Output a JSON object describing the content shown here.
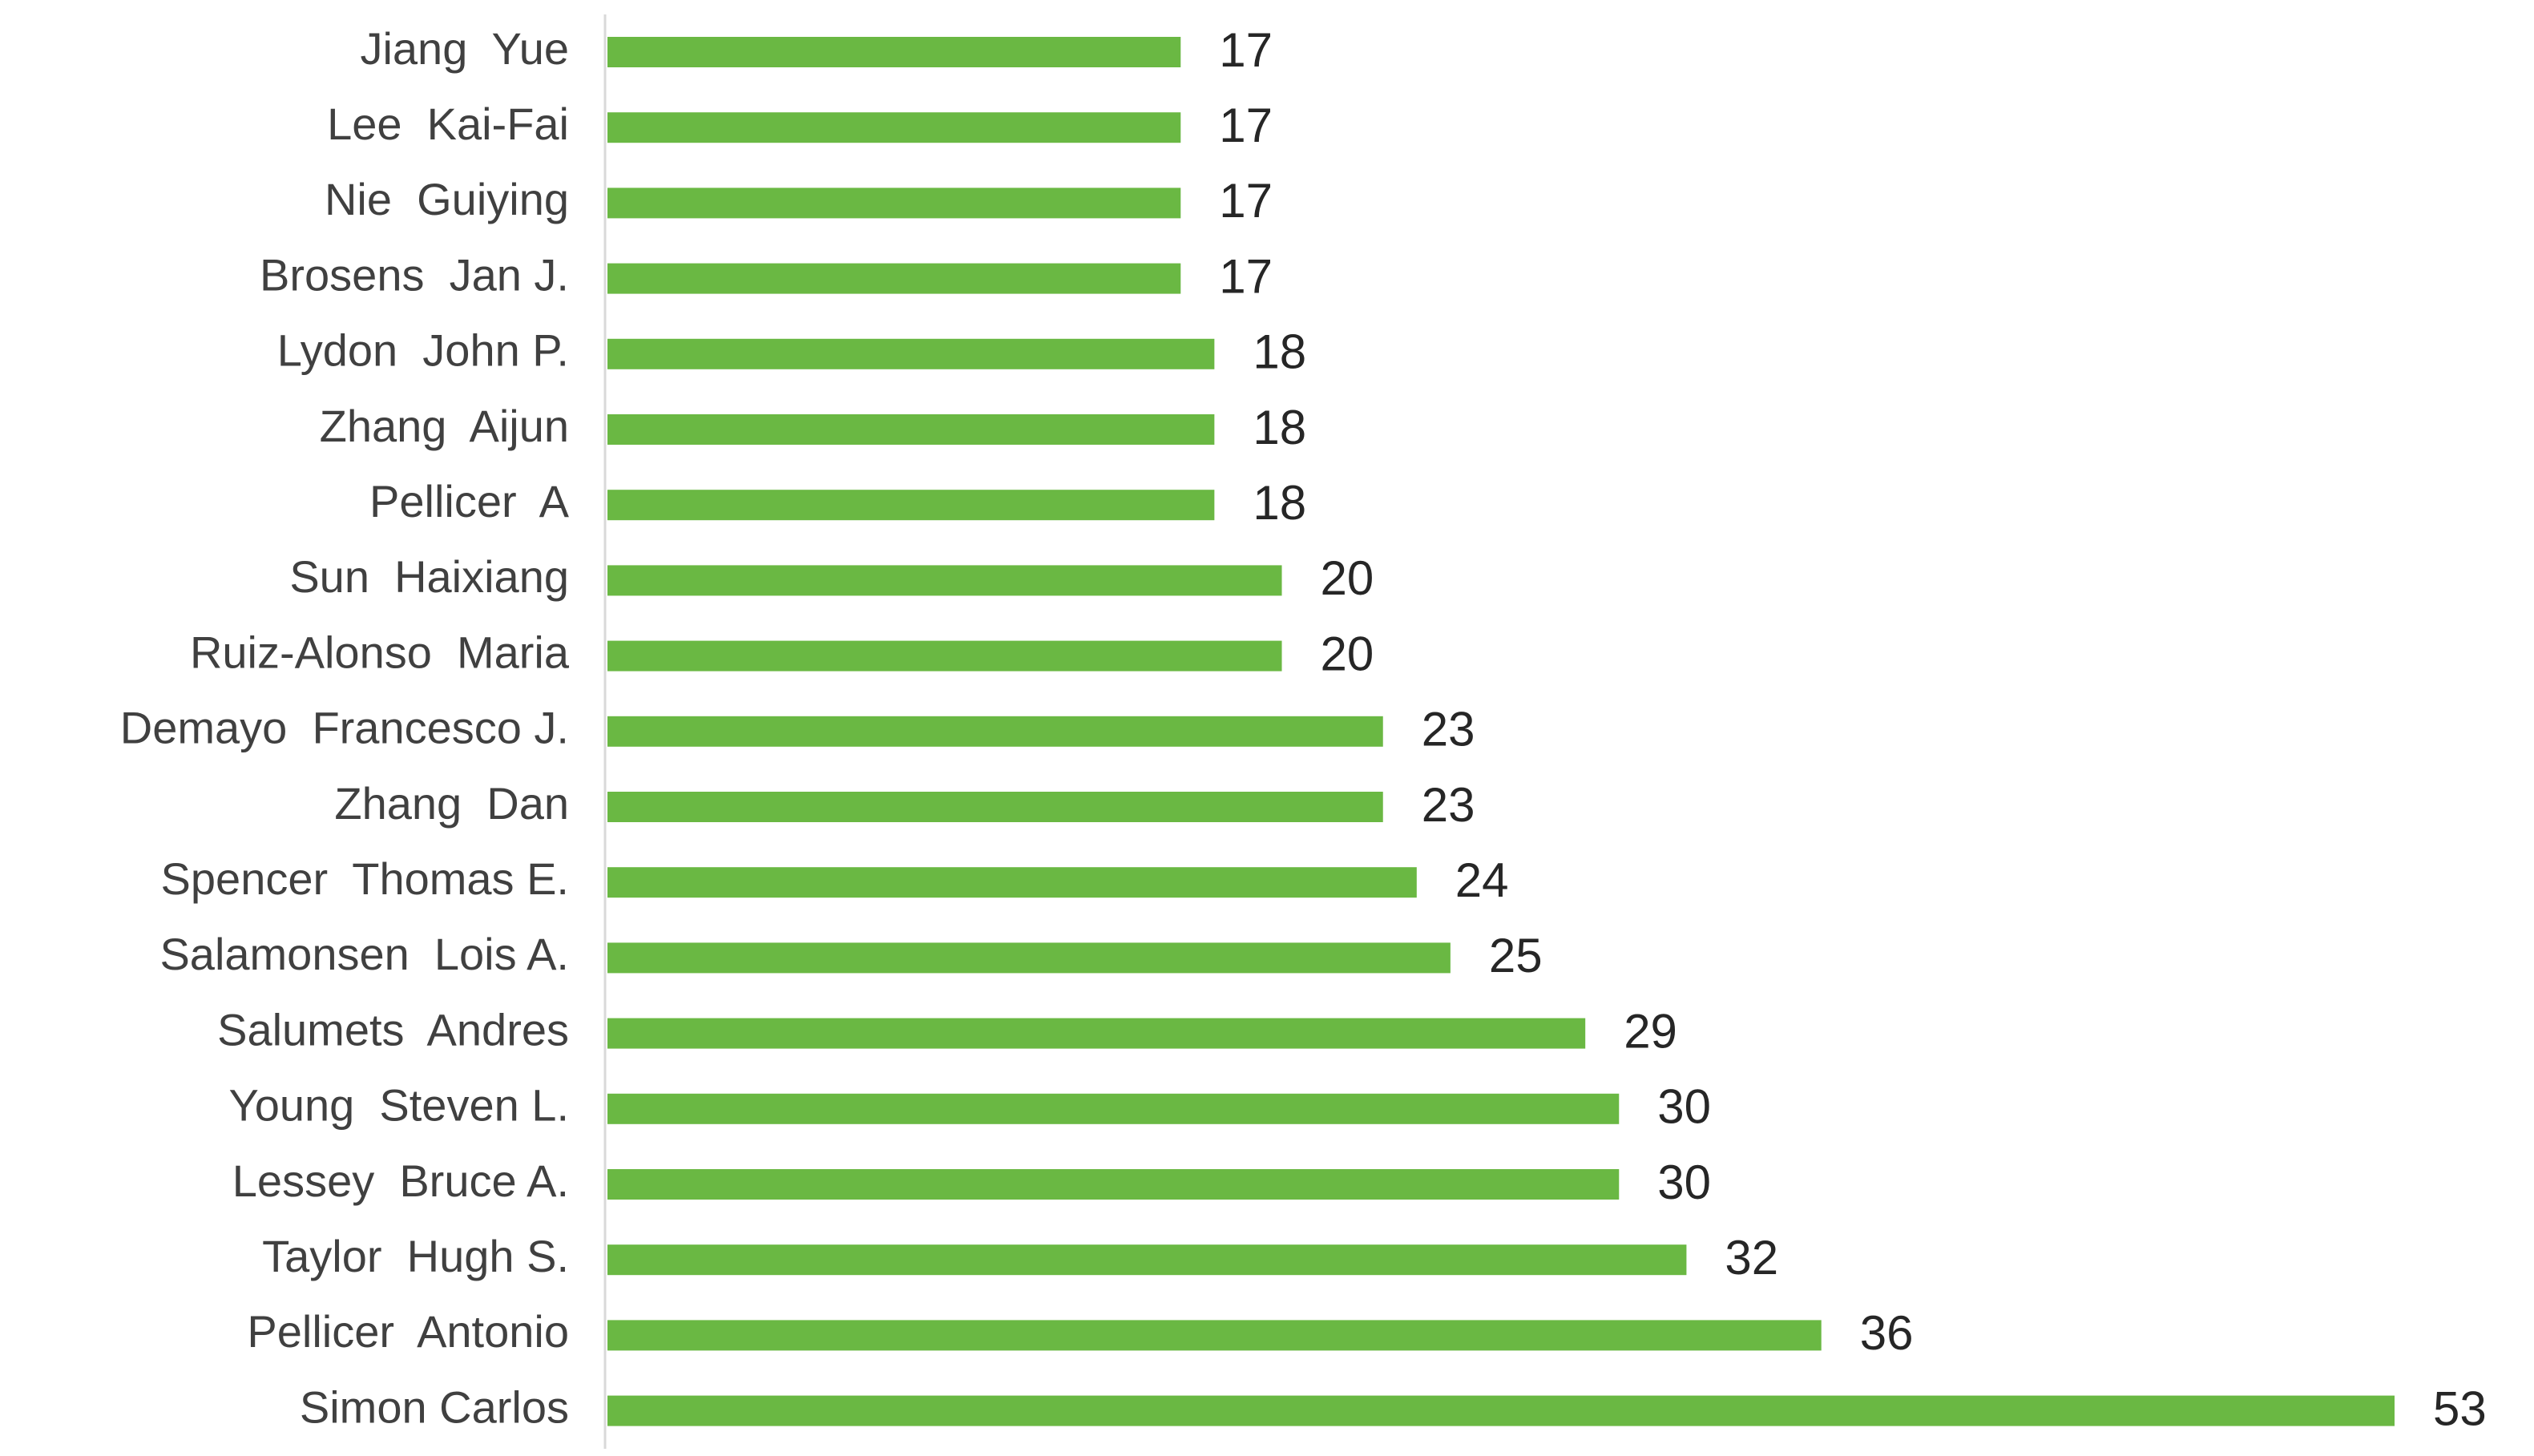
{
  "chart_data": {
    "type": "bar",
    "orientation": "horizontal",
    "categories": [
      "Jiang  Yue",
      "Lee  Kai-Fai",
      "Nie  Guiying",
      "Brosens  Jan J.",
      "Lydon  John P.",
      "Zhang  Aijun",
      "Pellicer  A",
      "Sun  Haixiang",
      "Ruiz-Alonso  Maria",
      "Demayo  Francesco J.",
      "Zhang  Dan",
      "Spencer  Thomas E.",
      "Salamonsen  Lois A.",
      "Salumets  Andres",
      "Young  Steven L.",
      "Lessey  Bruce A.",
      "Taylor  Hugh S.",
      "Pellicer  Antonio",
      "Simon Carlos"
    ],
    "values": [
      17,
      17,
      17,
      17,
      18,
      18,
      18,
      20,
      20,
      23,
      23,
      24,
      25,
      29,
      30,
      30,
      32,
      36,
      53
    ],
    "xlim": [
      0,
      53
    ],
    "grid": false,
    "legend": "none",
    "bar_color": "#6ab843",
    "axis_color": "#d9d9d9"
  }
}
